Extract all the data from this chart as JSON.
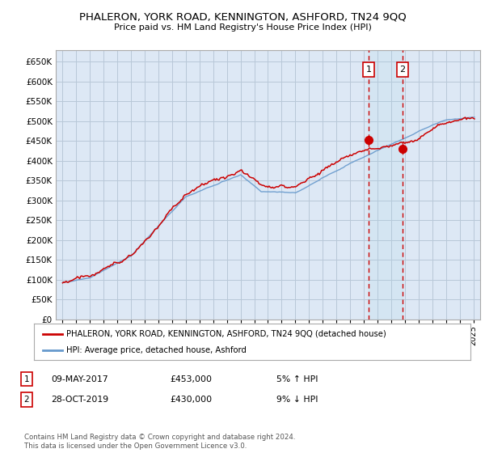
{
  "title": "PHALERON, YORK ROAD, KENNINGTON, ASHFORD, TN24 9QQ",
  "subtitle": "Price paid vs. HM Land Registry's House Price Index (HPI)",
  "ylabel_ticks": [
    0,
    50000,
    100000,
    150000,
    200000,
    250000,
    300000,
    350000,
    400000,
    450000,
    500000,
    550000,
    600000,
    650000
  ],
  "ylim": [
    0,
    680000
  ],
  "xlim_start": 1994.5,
  "xlim_end": 2025.5,
  "sale1_date": 2017.35,
  "sale1_price": 453000,
  "sale1_label": "09-MAY-2017",
  "sale1_pct": "5% ↑ HPI",
  "sale2_date": 2019.83,
  "sale2_price": 430000,
  "sale2_label": "28-OCT-2019",
  "sale2_pct": "9% ↓ HPI",
  "house_color": "#cc0000",
  "hpi_color": "#6699cc",
  "background_color": "#dde8f5",
  "grid_color": "#b8c8d8",
  "legend_line1": "PHALERON, YORK ROAD, KENNINGTON, ASHFORD, TN24 9QQ (detached house)",
  "legend_line2": "HPI: Average price, detached house, Ashford",
  "footer": "Contains HM Land Registry data © Crown copyright and database right 2024.\nThis data is licensed under the Open Government Licence v3.0.",
  "marker_box_color": "#cc0000"
}
